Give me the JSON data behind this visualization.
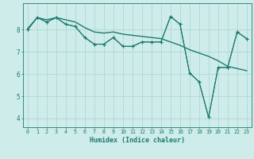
{
  "xlabel": "Humidex (Indice chaleur)",
  "background_color": "#ceecea",
  "grid_color": "#aed8d5",
  "line_color": "#1e7b70",
  "x_values": [
    0,
    1,
    2,
    3,
    4,
    5,
    6,
    7,
    8,
    9,
    10,
    11,
    12,
    13,
    14,
    15,
    16,
    17,
    18,
    19,
    20,
    21,
    22,
    23
  ],
  "line1": [
    8.0,
    8.55,
    8.35,
    8.55,
    8.25,
    8.15,
    7.65,
    7.35,
    7.35,
    7.65,
    7.25,
    7.25,
    7.45,
    7.45,
    7.45,
    8.6,
    8.25,
    6.05,
    5.65,
    4.05,
    6.3,
    6.3,
    7.9,
    7.6
  ],
  "line2": [
    8.0,
    8.55,
    8.35,
    8.55,
    8.25,
    8.15,
    7.65,
    7.35,
    7.35,
    7.65,
    7.25,
    7.25,
    7.45,
    7.45,
    7.45,
    8.6,
    8.25,
    6.05,
    5.65,
    4.05,
    6.3,
    6.3,
    7.9,
    7.6
  ],
  "line_trend": [
    8.05,
    8.55,
    8.45,
    8.55,
    8.45,
    8.35,
    8.1,
    7.9,
    7.85,
    7.9,
    7.8,
    7.75,
    7.7,
    7.65,
    7.6,
    7.45,
    7.3,
    7.1,
    6.95,
    6.8,
    6.6,
    6.35,
    6.25,
    6.15
  ],
  "ylim": [
    3.6,
    9.2
  ],
  "yticks": [
    4,
    5,
    6,
    7,
    8
  ],
  "figsize": [
    3.2,
    2.0
  ],
  "dpi": 100
}
